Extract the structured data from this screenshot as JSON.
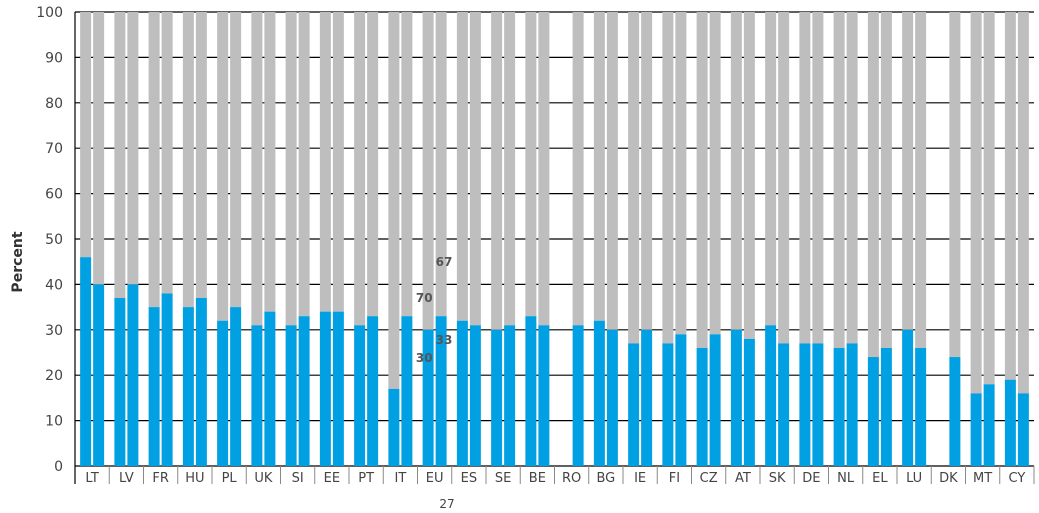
{
  "chart_data": {
    "type": "bar",
    "stacked": true,
    "ylabel": "Percent",
    "ylim": [
      0,
      100
    ],
    "yticks": [
      0,
      10,
      20,
      30,
      40,
      50,
      60,
      70,
      80,
      90,
      100
    ],
    "grid": true,
    "categories": [
      "LT",
      "LV",
      "FR",
      "HU",
      "PL",
      "UK",
      "SI",
      "EE",
      "PT",
      "IT",
      "EU",
      "ES",
      "SE",
      "BE",
      "RO",
      "BG",
      "IE",
      "FI",
      "CZ",
      "AT",
      "SK",
      "DE",
      "NL",
      "EL",
      "LU",
      "DK",
      "MT",
      "CY"
    ],
    "pair_values": [
      [
        46,
        40
      ],
      [
        37,
        40
      ],
      [
        35,
        38
      ],
      [
        35,
        37
      ],
      [
        32,
        35
      ],
      [
        31,
        34
      ],
      [
        31,
        33
      ],
      [
        34,
        34
      ],
      [
        31,
        33
      ],
      [
        17,
        33
      ],
      [
        30,
        33
      ],
      [
        32,
        31
      ],
      [
        30,
        31
      ],
      [
        33,
        31
      ],
      [
        null,
        31
      ],
      [
        32,
        30
      ],
      [
        27,
        30
      ],
      [
        27,
        29
      ],
      [
        26,
        29
      ],
      [
        30,
        28
      ],
      [
        31,
        27
      ],
      [
        27,
        27
      ],
      [
        26,
        27
      ],
      [
        24,
        26
      ],
      [
        30,
        26
      ],
      [
        null,
        24
      ],
      [
        16,
        18
      ],
      [
        19,
        16
      ]
    ],
    "remainder_color": "#bebebe",
    "value_color": "#00a0e3",
    "annotations": [
      {
        "category": "EU",
        "bar": 0,
        "value_label": "30",
        "remainder_label": "70"
      },
      {
        "category": "EU",
        "bar": 1,
        "value_label": "33",
        "remainder_label": "67"
      }
    ],
    "footnote": "27"
  }
}
